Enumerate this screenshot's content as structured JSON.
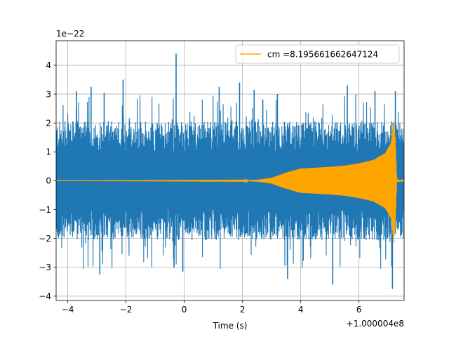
{
  "chart_data": {
    "type": "line",
    "xlabel": "Time (s)",
    "ylabel": "",
    "x_offset_label": "+1.000004e8",
    "y_scale_label": "1e−22",
    "xlim": [
      -4.4,
      7.55
    ],
    "ylim": [
      -4.15,
      4.85
    ],
    "x_ticks": [
      -4,
      -2,
      0,
      2,
      4,
      6
    ],
    "x_tick_labels": [
      "−4",
      "−2",
      "0",
      "2",
      "4",
      "6"
    ],
    "y_ticks": [
      -4,
      -3,
      -2,
      -1,
      0,
      1,
      2,
      3,
      4
    ],
    "y_tick_labels": [
      "−4",
      "−3",
      "−2",
      "−1",
      "0",
      "1",
      "2",
      "3",
      "4"
    ],
    "grid": true,
    "legend_position": "upper right",
    "series": [
      {
        "name": "",
        "color": "#1f77b4",
        "description": "noisy strain data",
        "x_range": [
          -4.4,
          7.55
        ],
        "typical_amplitude": 1.8,
        "peaks": [
          {
            "x": -3.7,
            "y": 3.1
          },
          {
            "x": -3.2,
            "y": 3.25
          },
          {
            "x": -2.9,
            "y": -3.25
          },
          {
            "x": -2.75,
            "y": 3.05
          },
          {
            "x": -2.1,
            "y": 3.5
          },
          {
            "x": -0.28,
            "y": 4.4
          },
          {
            "x": -0.05,
            "y": -3.15
          },
          {
            "x": 1.2,
            "y": 3.25
          },
          {
            "x": 1.9,
            "y": 3.4
          },
          {
            "x": 2.4,
            "y": 3.15
          },
          {
            "x": 3.2,
            "y": 3.0
          },
          {
            "x": 3.55,
            "y": -3.4
          },
          {
            "x": 5.1,
            "y": -3.6
          },
          {
            "x": 5.6,
            "y": 3.3
          },
          {
            "x": 6.55,
            "y": 3.1
          },
          {
            "x": 7.15,
            "y": -3.75
          },
          {
            "x": 7.25,
            "y": 3.1
          }
        ]
      },
      {
        "name": "cm =8.195661662647124",
        "color": "#ffa500",
        "description": "chirp waveform",
        "envelope": [
          {
            "x": -4.4,
            "y": 0.0
          },
          {
            "x": 2.0,
            "y": 0.01
          },
          {
            "x": 2.5,
            "y": 0.03
          },
          {
            "x": 3.0,
            "y": 0.1
          },
          {
            "x": 3.5,
            "y": 0.28
          },
          {
            "x": 4.0,
            "y": 0.42
          },
          {
            "x": 4.5,
            "y": 0.45
          },
          {
            "x": 5.0,
            "y": 0.48
          },
          {
            "x": 5.5,
            "y": 0.52
          },
          {
            "x": 6.0,
            "y": 0.6
          },
          {
            "x": 6.5,
            "y": 0.72
          },
          {
            "x": 6.9,
            "y": 0.95
          },
          {
            "x": 7.1,
            "y": 1.3
          },
          {
            "x": 7.2,
            "y": 2.15
          },
          {
            "x": 7.25,
            "y": 1.4
          },
          {
            "x": 7.3,
            "y": 0.05
          },
          {
            "x": 7.55,
            "y": 0.0
          }
        ]
      }
    ]
  }
}
